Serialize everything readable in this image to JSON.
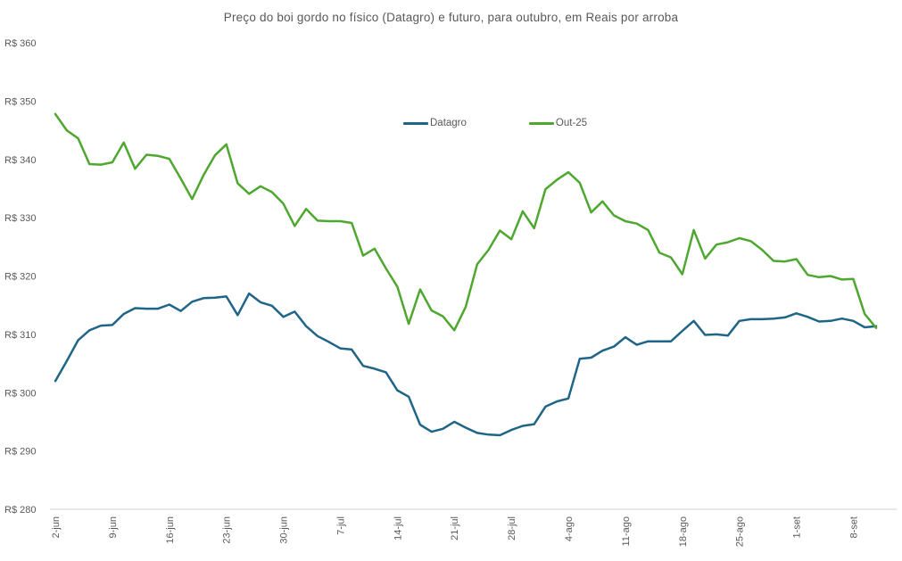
{
  "title": "Preço do boi gordo no físico (Datagro) e futuro, para outubro, em Reais por arroba",
  "chart_data": {
    "type": "line",
    "title": "Preço do boi gordo no físico (Datagro) e futuro, para outubro, em Reais por arroba",
    "x": [
      "2-jun",
      "3-jun",
      "4-jun",
      "5-jun",
      "6-jun",
      "9-jun",
      "10-jun",
      "11-jun",
      "12-jun",
      "13-jun",
      "16-jun",
      "17-jun",
      "18-jun",
      "19-jun",
      "20-jun",
      "23-jun",
      "24-jun",
      "25-jun",
      "26-jun",
      "27-jun",
      "30-jun",
      "1-jul",
      "2-jul",
      "3-jul",
      "4-jul",
      "7-jul",
      "8-jul",
      "9-jul",
      "10-jul",
      "11-jul",
      "14-jul",
      "15-jul",
      "16-jul",
      "17-jul",
      "18-jul",
      "21-jul",
      "22-jul",
      "23-jul",
      "24-jul",
      "25-jul",
      "28-jul",
      "29-jul",
      "30-jul",
      "31-jul",
      "1-ago",
      "4-ago",
      "5-ago",
      "6-ago",
      "7-ago",
      "8-ago",
      "11-ago",
      "12-ago",
      "13-ago",
      "14-ago",
      "15-ago",
      "18-ago",
      "19-ago",
      "20-ago",
      "21-ago",
      "22-ago",
      "25-ago",
      "26-ago",
      "27-ago",
      "28-ago",
      "29-ago",
      "1-set",
      "2-set",
      "3-set",
      "4-set",
      "5-set",
      "8-set",
      "9-set",
      "10-set"
    ],
    "xtick_labels": [
      "2-jun",
      "9-jun",
      "16-jun",
      "23-jun",
      "30-jun",
      "7-jul",
      "14-jul",
      "21-jul",
      "28-jul",
      "4-ago",
      "11-ago",
      "18-ago",
      "25-ago",
      "1-set",
      "8-set"
    ],
    "xtick_every": 5,
    "series": [
      {
        "name": "Datagro",
        "key": "datagro",
        "color": "#1F6587",
        "values": [
          302,
          305.4,
          309,
          310.7,
          311.5,
          311.6,
          313.5,
          314.5,
          314.4,
          314.4,
          315.1,
          314,
          315.6,
          316.2,
          316.3,
          316.5,
          313.3,
          317,
          315.5,
          314.9,
          313,
          313.9,
          311.4,
          309.7,
          308.7,
          307.6,
          307.4,
          304.6,
          304.1,
          303.5,
          300.4,
          299.3,
          294.5,
          293.3,
          293.8,
          295,
          294,
          293.1,
          292.8,
          292.7,
          293.6,
          294.3,
          294.6,
          297.6,
          298.5,
          299,
          305.8,
          306,
          307.2,
          307.9,
          309.5,
          308.2,
          308.8,
          308.8,
          308.8,
          310.6,
          312.3,
          309.9,
          310,
          309.8,
          312.3,
          312.6,
          312.6,
          312.7,
          312.9,
          313.6,
          313,
          312.2,
          312.3,
          312.7,
          312.3,
          311.2,
          311.4
        ]
      },
      {
        "name": "Out-25",
        "key": "out25",
        "color": "#4EA72E",
        "values": [
          347.8,
          345,
          343.6,
          339.2,
          339.1,
          339.5,
          342.9,
          338.4,
          340.8,
          340.6,
          340.1,
          336.7,
          333.2,
          337.3,
          340.7,
          342.6,
          335.9,
          334.1,
          335.4,
          334.4,
          332.4,
          328.6,
          331.5,
          329.5,
          329.4,
          329.4,
          329.1,
          323.5,
          324.7,
          321.3,
          318.2,
          311.8,
          317.7,
          314.1,
          313.1,
          310.7,
          314.7,
          322,
          324.5,
          327.8,
          326.3,
          331.1,
          328.2,
          334.9,
          336.5,
          337.8,
          336,
          330.9,
          332.8,
          330.4,
          329.4,
          329,
          327.9,
          324,
          323.2,
          320.3,
          327.9,
          323,
          325.4,
          325.8,
          326.5,
          326,
          324.5,
          322.6,
          322.5,
          322.9,
          320.2,
          319.8,
          320,
          319.4,
          319.5,
          313.5,
          311.1
        ]
      }
    ],
    "ylim": [
      280,
      360
    ],
    "ytick_step": 10,
    "currency_prefix": "R$",
    "grid": false,
    "legend_position": "top-center",
    "axis_color": "#D9D9D9",
    "label_color": "#595959",
    "line_width": 2.5
  }
}
